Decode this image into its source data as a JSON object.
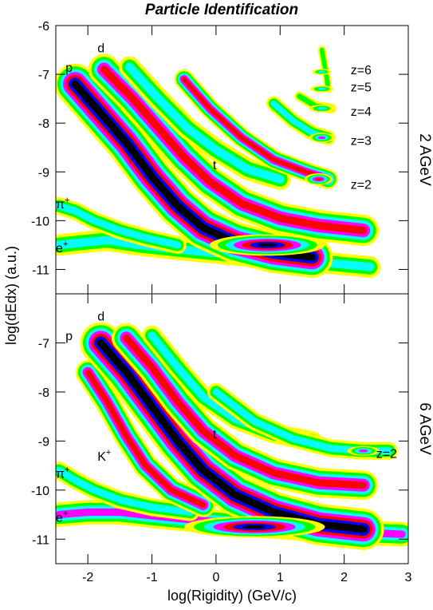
{
  "title": "Particle Identification",
  "xlabel": "log(Rigidity) (GeV/c)",
  "ylabel": "log(dEdx) (a.u.)",
  "colors": {
    "levels": [
      "#ffff00",
      "#00ff00",
      "#00ffff",
      "#ff00ff",
      "#ff0000",
      "#0000ff",
      "#000000"
    ]
  },
  "chart_data": {
    "type": "heatmap",
    "xlim": [
      -2.5,
      3
    ],
    "x_ticks": [
      -2,
      -1,
      0,
      1,
      2,
      3
    ],
    "x_tick_labels": [
      "-2",
      "-1",
      "0",
      "1",
      "2",
      "3"
    ],
    "grid": false,
    "panels": [
      {
        "side_label": "2 AGeV",
        "ylim": [
          -11.5,
          -6
        ],
        "y_ticks": [
          -6,
          -7,
          -8,
          -9,
          -10,
          -11
        ],
        "y_tick_labels": [
          "-6",
          "-7",
          "-8",
          "-9",
          "-10",
          "-11"
        ],
        "annotations": [
          {
            "id": "p",
            "text": "p",
            "x": -2.35,
            "y": -6.85
          },
          {
            "id": "d",
            "text": "d",
            "x": -1.85,
            "y": -6.45
          },
          {
            "id": "t",
            "text": "t",
            "x": -0.05,
            "y": -8.85
          },
          {
            "id": "pi",
            "text": "π",
            "sup": "+",
            "x": -2.5,
            "y": -9.65
          },
          {
            "id": "e",
            "text": "e",
            "sup": "+",
            "x": -2.5,
            "y": -10.55
          },
          {
            "id": "z6",
            "text": "z=6",
            "x": 2.1,
            "y": -6.9
          },
          {
            "id": "z5",
            "text": "z=5",
            "x": 2.1,
            "y": -7.25
          },
          {
            "id": "z4",
            "text": "z=4",
            "x": 2.1,
            "y": -7.75
          },
          {
            "id": "z3",
            "text": "z=3",
            "x": 2.1,
            "y": -8.35
          },
          {
            "id": "z2",
            "text": "z=2",
            "x": 2.1,
            "y": -9.25
          }
        ],
        "bands": [
          {
            "name": "e",
            "pts": [
              [
                -2.45,
                -10.5
              ],
              [
                -2.1,
                -10.45
              ],
              [
                -1.7,
                -10.4
              ],
              [
                -1.2,
                -10.5
              ],
              [
                -0.5,
                -10.6
              ],
              [
                0.3,
                -10.7
              ],
              [
                1.2,
                -10.8
              ],
              [
                2.4,
                -10.95
              ]
            ],
            "w": 0.22,
            "lv": 2
          },
          {
            "name": "pi",
            "pts": [
              [
                -2.45,
                -9.7
              ],
              [
                -2.2,
                -9.8
              ],
              [
                -1.9,
                -10.0
              ],
              [
                -1.5,
                -10.2
              ],
              [
                -1.1,
                -10.35
              ],
              [
                -0.6,
                -10.5
              ]
            ],
            "w": 0.18,
            "lv": 2
          },
          {
            "name": "p",
            "pts": [
              [
                -2.2,
                -7.2
              ],
              [
                -1.8,
                -7.8
              ],
              [
                -1.4,
                -8.4
              ],
              [
                -1.0,
                -9.1
              ],
              [
                -0.6,
                -9.7
              ],
              [
                -0.2,
                -10.15
              ],
              [
                0.3,
                -10.45
              ],
              [
                0.9,
                -10.65
              ],
              [
                1.5,
                -10.75
              ]
            ],
            "w": 0.42,
            "lv": 6
          },
          {
            "name": "d",
            "pts": [
              [
                -1.75,
                -6.9
              ],
              [
                -1.3,
                -7.5
              ],
              [
                -0.9,
                -8.1
              ],
              [
                -0.5,
                -8.7
              ],
              [
                -0.1,
                -9.2
              ],
              [
                0.4,
                -9.65
              ],
              [
                1.0,
                -9.95
              ],
              [
                1.6,
                -10.1
              ],
              [
                2.3,
                -10.2
              ]
            ],
            "w": 0.32,
            "lv": 4
          },
          {
            "name": "t",
            "pts": [
              [
                -1.35,
                -6.85
              ],
              [
                -0.9,
                -7.5
              ],
              [
                -0.45,
                -8.1
              ],
              [
                0.0,
                -8.55
              ],
              [
                0.5,
                -8.95
              ],
              [
                1.0,
                -9.15
              ]
            ],
            "w": 0.22,
            "lv": 2
          },
          {
            "name": "z2",
            "pts": [
              [
                -0.5,
                -7.1
              ],
              [
                -0.1,
                -7.7
              ],
              [
                0.4,
                -8.3
              ],
              [
                0.9,
                -8.75
              ],
              [
                1.4,
                -9.0
              ],
              [
                1.75,
                -9.15
              ]
            ],
            "w": 0.2,
            "lv": 4
          },
          {
            "name": "z3",
            "pts": [
              [
                0.9,
                -7.6
              ],
              [
                1.2,
                -7.95
              ],
              [
                1.5,
                -8.2
              ],
              [
                1.75,
                -8.3
              ]
            ],
            "w": 0.15,
            "lv": 2
          },
          {
            "name": "z4",
            "pts": [
              [
                1.3,
                -7.45
              ],
              [
                1.55,
                -7.65
              ],
              [
                1.8,
                -7.7
              ]
            ],
            "w": 0.1,
            "lv": 1
          },
          {
            "name": "z56",
            "pts": [
              [
                1.65,
                -6.5
              ],
              [
                1.72,
                -7.0
              ],
              [
                1.75,
                -7.3
              ]
            ],
            "w": 0.08,
            "lv": 1
          }
        ],
        "blobs": [
          {
            "x": 0.8,
            "y": -10.5,
            "rx": 0.9,
            "ry": 0.22,
            "lv": 6
          },
          {
            "x": 1.6,
            "y": -9.15,
            "rx": 0.22,
            "ry": 0.12,
            "lv": 4
          },
          {
            "x": 1.65,
            "y": -8.3,
            "rx": 0.2,
            "ry": 0.1,
            "lv": 3
          },
          {
            "x": 1.65,
            "y": -7.7,
            "rx": 0.2,
            "ry": 0.08,
            "lv": 2
          },
          {
            "x": 1.65,
            "y": -7.3,
            "rx": 0.18,
            "ry": 0.07,
            "lv": 2
          },
          {
            "x": 1.65,
            "y": -6.95,
            "rx": 0.15,
            "ry": 0.06,
            "lv": 2
          }
        ]
      },
      {
        "side_label": "6 AGeV",
        "ylim": [
          -11.5,
          -6
        ],
        "y_ticks": [
          -7,
          -8,
          -9,
          -10,
          -11
        ],
        "y_tick_labels": [
          "-7",
          "-8",
          "-9",
          "-10",
          "-11"
        ],
        "annotations": [
          {
            "id": "p",
            "text": "p",
            "x": -2.35,
            "y": -6.85
          },
          {
            "id": "d",
            "text": "d",
            "x": -1.85,
            "y": -6.45
          },
          {
            "id": "t",
            "text": "t",
            "x": -0.05,
            "y": -8.85
          },
          {
            "id": "K",
            "text": "K",
            "sup": "+",
            "x": -1.85,
            "y": -9.3
          },
          {
            "id": "pi",
            "text": "π",
            "sup": "+",
            "x": -2.5,
            "y": -9.65
          },
          {
            "id": "e",
            "text": "e",
            "sup": "+",
            "x": -2.5,
            "y": -10.55
          },
          {
            "id": "z2",
            "text": "z=2",
            "x": 2.5,
            "y": -9.25
          }
        ],
        "bands": [
          {
            "name": "e",
            "pts": [
              [
                -2.45,
                -10.5
              ],
              [
                -2.0,
                -10.45
              ],
              [
                -1.5,
                -10.45
              ],
              [
                -0.8,
                -10.55
              ],
              [
                0.0,
                -10.65
              ],
              [
                1.0,
                -10.75
              ],
              [
                2.0,
                -10.85
              ],
              [
                2.9,
                -10.9
              ]
            ],
            "w": 0.25,
            "lv": 3
          },
          {
            "name": "pi",
            "pts": [
              [
                -2.45,
                -9.6
              ],
              [
                -2.2,
                -9.8
              ],
              [
                -1.9,
                -10.0
              ],
              [
                -1.5,
                -10.2
              ],
              [
                -1.0,
                -10.35
              ],
              [
                -0.4,
                -10.45
              ]
            ],
            "w": 0.18,
            "lv": 2
          },
          {
            "name": "K",
            "pts": [
              [
                -2.0,
                -7.6
              ],
              [
                -1.7,
                -8.2
              ],
              [
                -1.4,
                -8.9
              ],
              [
                -1.1,
                -9.5
              ],
              [
                -0.7,
                -10.0
              ],
              [
                -0.2,
                -10.3
              ]
            ],
            "w": 0.25,
            "lv": 4
          },
          {
            "name": "p",
            "pts": [
              [
                -1.8,
                -7.0
              ],
              [
                -1.4,
                -7.6
              ],
              [
                -1.0,
                -8.3
              ],
              [
                -0.6,
                -9.0
              ],
              [
                -0.2,
                -9.6
              ],
              [
                0.3,
                -10.1
              ],
              [
                0.9,
                -10.45
              ],
              [
                1.6,
                -10.7
              ],
              [
                2.3,
                -10.8
              ]
            ],
            "w": 0.42,
            "lv": 6
          },
          {
            "name": "d",
            "pts": [
              [
                -1.4,
                -6.9
              ],
              [
                -1.0,
                -7.5
              ],
              [
                -0.6,
                -8.2
              ],
              [
                -0.2,
                -8.8
              ],
              [
                0.3,
                -9.3
              ],
              [
                0.9,
                -9.65
              ],
              [
                1.6,
                -9.85
              ],
              [
                2.3,
                -9.9
              ]
            ],
            "w": 0.3,
            "lv": 4
          },
          {
            "name": "t",
            "pts": [
              [
                -1.0,
                -6.85
              ],
              [
                -0.6,
                -7.5
              ],
              [
                -0.2,
                -8.1
              ],
              [
                0.3,
                -8.55
              ],
              [
                0.9,
                -8.85
              ],
              [
                1.5,
                -9.0
              ]
            ],
            "w": 0.2,
            "lv": 2
          },
          {
            "name": "z2",
            "pts": [
              [
                0.0,
                -8.0
              ],
              [
                0.6,
                -8.6
              ],
              [
                1.2,
                -8.95
              ],
              [
                1.8,
                -9.15
              ],
              [
                2.3,
                -9.2
              ],
              [
                2.7,
                -9.2
              ]
            ],
            "w": 0.18,
            "lv": 2
          }
        ],
        "blobs": [
          {
            "x": 0.6,
            "y": -10.75,
            "rx": 1.1,
            "ry": 0.22,
            "lv": 6
          },
          {
            "x": 2.3,
            "y": -9.2,
            "rx": 0.25,
            "ry": 0.1,
            "lv": 3
          }
        ]
      }
    ]
  }
}
